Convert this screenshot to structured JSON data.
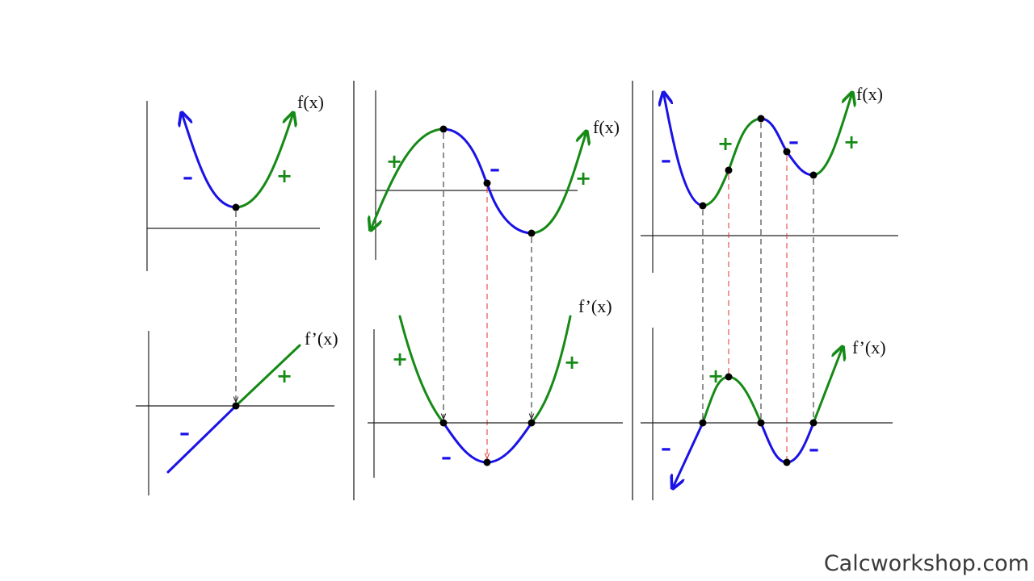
{
  "colors": {
    "decreasing": "#1a12e6",
    "increasing": "#168a16",
    "guide_black": "#222222",
    "guide_red": "#e23030"
  },
  "panels": [
    {
      "f_label": "f(x)",
      "fprime_label": "f’(x)"
    },
    {
      "f_label": "f(x)",
      "fprime_label": "f’(x)"
    },
    {
      "f_label": "f(x)",
      "fprime_label": "f’(x)"
    }
  ],
  "signs": {
    "plus": "+",
    "minus": "–"
  },
  "watermark": "Calcworkshop.com"
}
